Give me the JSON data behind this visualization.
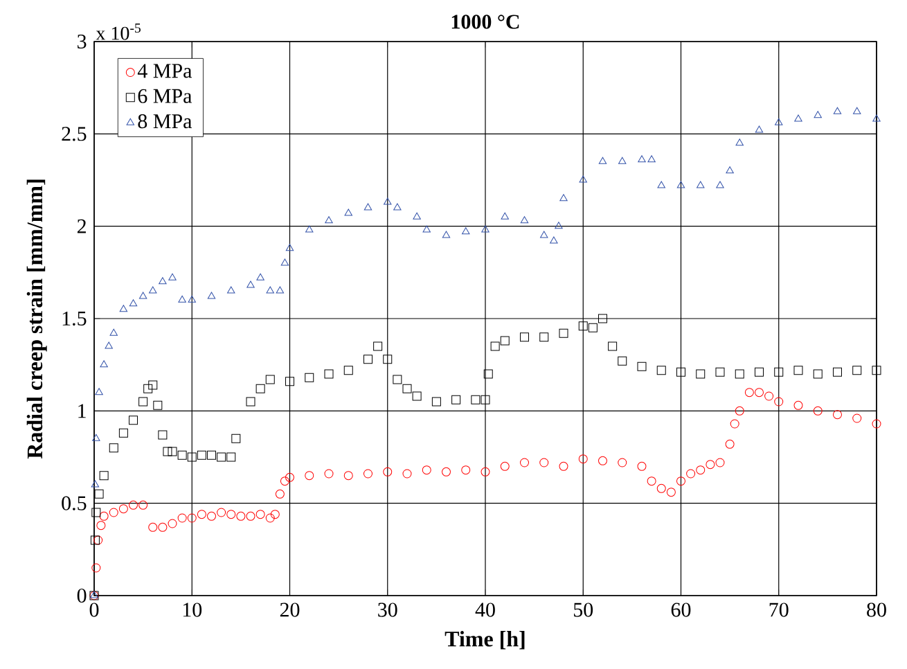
{
  "chart_data": {
    "type": "scatter",
    "title": "1000 °C",
    "xlabel": "Time [h]",
    "ylabel": "Radial creep strain [mm/mm]",
    "annotations": [
      "x 10$^{-5}$"
    ],
    "xlim": [
      0,
      80
    ],
    "ylim": [
      0,
      3
    ],
    "xticks": [
      0,
      10,
      20,
      30,
      40,
      50,
      60,
      70,
      80
    ],
    "yticks": [
      0,
      0.5,
      1,
      1.5,
      2,
      2.5,
      3
    ],
    "grid": true,
    "legend": "top left",
    "series": [
      {
        "name": "4 MPa",
        "color": "#ff0000",
        "marker": "circle",
        "x": [
          0,
          0.2,
          0.4,
          0.7,
          1,
          2,
          3,
          4,
          5,
          6,
          7,
          8,
          9,
          10,
          11,
          12,
          13,
          14,
          15,
          16,
          17,
          18,
          18.5,
          19,
          19.5,
          20,
          22,
          24,
          26,
          28,
          30,
          32,
          34,
          36,
          38,
          40,
          42,
          44,
          46,
          48,
          50,
          52,
          54,
          56,
          57,
          58,
          59,
          60,
          61,
          62,
          63,
          64,
          65,
          65.5,
          66,
          67,
          68,
          69,
          70,
          72,
          74,
          76,
          78,
          80
        ],
        "values": [
          0,
          0.15,
          0.3,
          0.38,
          0.43,
          0.45,
          0.47,
          0.49,
          0.49,
          0.37,
          0.37,
          0.39,
          0.42,
          0.42,
          0.44,
          0.43,
          0.45,
          0.44,
          0.43,
          0.43,
          0.44,
          0.42,
          0.44,
          0.55,
          0.62,
          0.64,
          0.65,
          0.66,
          0.65,
          0.66,
          0.67,
          0.66,
          0.68,
          0.67,
          0.68,
          0.67,
          0.7,
          0.72,
          0.72,
          0.7,
          0.74,
          0.73,
          0.72,
          0.7,
          0.62,
          0.58,
          0.56,
          0.62,
          0.66,
          0.68,
          0.71,
          0.72,
          0.82,
          0.93,
          1.0,
          1.1,
          1.1,
          1.08,
          1.05,
          1.03,
          1.0,
          0.98,
          0.96,
          0.93
        ]
      },
      {
        "name": "6 MPa",
        "color": "#000000",
        "marker": "square",
        "x": [
          0,
          0.1,
          0.2,
          0.5,
          1,
          2,
          3,
          4,
          5,
          5.5,
          6,
          6.5,
          7,
          7.5,
          8,
          9,
          10,
          11,
          12,
          13,
          14,
          14.5,
          16,
          17,
          18,
          20,
          22,
          24,
          26,
          28,
          29,
          30,
          31,
          32,
          33,
          35,
          37,
          39,
          40,
          40.3,
          41,
          42,
          44,
          46,
          48,
          50,
          51,
          52,
          53,
          54,
          56,
          58,
          60,
          62,
          64,
          66,
          68,
          70,
          72,
          74,
          76,
          78,
          80
        ],
        "values": [
          0,
          0.3,
          0.45,
          0.55,
          0.65,
          0.8,
          0.88,
          0.95,
          1.05,
          1.12,
          1.14,
          1.03,
          0.87,
          0.78,
          0.78,
          0.76,
          0.75,
          0.76,
          0.76,
          0.75,
          0.75,
          0.85,
          1.05,
          1.12,
          1.17,
          1.16,
          1.18,
          1.2,
          1.22,
          1.28,
          1.35,
          1.28,
          1.17,
          1.12,
          1.08,
          1.05,
          1.06,
          1.06,
          1.06,
          1.2,
          1.35,
          1.38,
          1.4,
          1.4,
          1.42,
          1.46,
          1.45,
          1.5,
          1.35,
          1.27,
          1.24,
          1.22,
          1.21,
          1.2,
          1.21,
          1.2,
          1.21,
          1.21,
          1.22,
          1.2,
          1.21,
          1.22,
          1.22
        ]
      },
      {
        "name": "8 MPa",
        "color": "#3050a8",
        "marker": "triangle",
        "x": [
          0,
          0.1,
          0.2,
          0.5,
          1,
          1.5,
          2,
          3,
          4,
          5,
          6,
          7,
          8,
          9,
          10,
          12,
          14,
          16,
          17,
          18,
          19,
          19.5,
          20,
          22,
          24,
          26,
          28,
          30,
          31,
          33,
          34,
          36,
          38,
          40,
          42,
          44,
          46,
          47,
          47.5,
          48,
          50,
          52,
          54,
          56,
          57,
          58,
          60,
          62,
          64,
          65,
          66,
          68,
          70,
          72,
          74,
          76,
          78,
          80
        ],
        "values": [
          0,
          0.6,
          0.85,
          1.1,
          1.25,
          1.35,
          1.42,
          1.55,
          1.58,
          1.62,
          1.65,
          1.7,
          1.72,
          1.6,
          1.6,
          1.62,
          1.65,
          1.68,
          1.72,
          1.65,
          1.65,
          1.8,
          1.88,
          1.98,
          2.03,
          2.07,
          2.1,
          2.13,
          2.1,
          2.05,
          1.98,
          1.95,
          1.97,
          1.98,
          2.05,
          2.03,
          1.95,
          1.92,
          2.0,
          2.15,
          2.25,
          2.35,
          2.35,
          2.36,
          2.36,
          2.22,
          2.22,
          2.22,
          2.22,
          2.3,
          2.45,
          2.52,
          2.56,
          2.58,
          2.6,
          2.62,
          2.62,
          2.58
        ]
      }
    ]
  }
}
